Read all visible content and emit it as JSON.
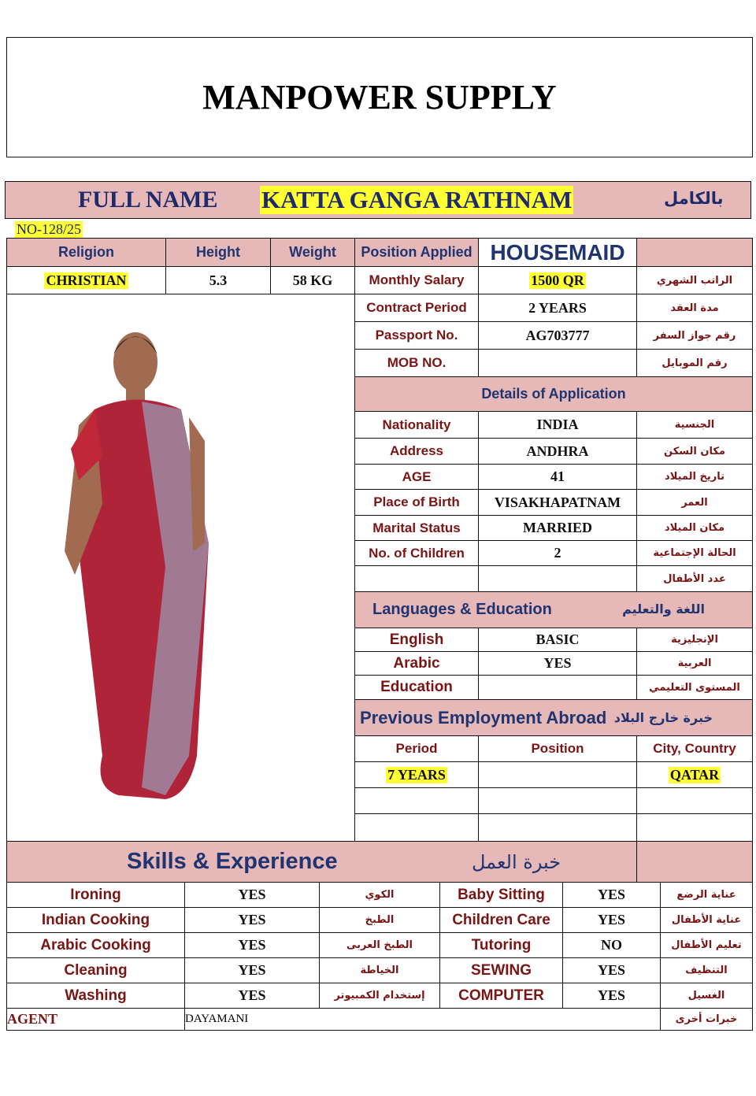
{
  "title": "MANPOWER SUPPLY",
  "name_bar": {
    "label": "FULL NAME",
    "name": "KATTA GANGA RATHNAM",
    "arabic": "بالكامل"
  },
  "ref_no": "NO-128/25",
  "personal": {
    "religion_label": "Religion",
    "religion": "CHRISTIAN",
    "height_label": "Height",
    "height": "5.3",
    "weight_label": "Weight",
    "weight": "58  KG",
    "position_label": "Position Applied",
    "position": "HOUSEMAID",
    "salary_label": "Monthly Salary",
    "salary": "1500 QR",
    "salary_ar": "الراتب  الشهري",
    "contract_label": "Contract Period",
    "contract": "2 YEARS",
    "contract_ar": "مدة العقد",
    "passport_label": "Passport No.",
    "passport": "AG703777",
    "passport_ar": "رقم جواز السفر",
    "mob_label": "MOB NO.",
    "mob": "",
    "mob_ar": "رقم  الموبايل"
  },
  "details": {
    "header": "Details of Application",
    "rows": [
      {
        "label": "Nationality",
        "value": "INDIA",
        "ar": "الجنسية"
      },
      {
        "label": "Address",
        "value": "ANDHRA",
        "ar": "مكان السكن"
      },
      {
        "label": "AGE",
        "value": "41",
        "ar": "تاريخ  الميلاد"
      },
      {
        "label": "Place of Birth",
        "value": "VISAKHAPATNAM",
        "ar": "العمر"
      },
      {
        "label": "Marital Status",
        "value": "MARRIED",
        "ar": "مكان الميلاد"
      },
      {
        "label": "No. of Children",
        "value": "2",
        "ar": "الحالة الإجتماعية"
      },
      {
        "label": "",
        "value": "",
        "ar": "عدد الأطفال"
      }
    ]
  },
  "languages": {
    "header": "Languages & Education",
    "header_ar": "اللغة والتعليم",
    "rows": [
      {
        "label": "English",
        "value": "BASIC",
        "ar": "الإنجليزية"
      },
      {
        "label": "Arabic",
        "value": "YES",
        "ar": "العربية"
      },
      {
        "label": "Education",
        "value": "",
        "ar": "المستوى التعليمي"
      }
    ]
  },
  "employment": {
    "header": "Previous Employment Abroad",
    "header_ar": "خبرة خارج البلاد",
    "columns": [
      "Period",
      "Position",
      "City, Country"
    ],
    "rows": [
      [
        "7 YEARS",
        "",
        "QATAR"
      ],
      [
        "",
        "",
        ""
      ],
      [
        "",
        "",
        ""
      ]
    ]
  },
  "skills": {
    "header": "Skills & Experience",
    "header_ar": "خبرة العمل",
    "rows": [
      {
        "l": "Ironing",
        "lv": "YES",
        "lar": "الكوي",
        "r": "Baby Sitting",
        "rv": "YES",
        "rar": "عناية الرضع"
      },
      {
        "l": "Indian Cooking",
        "lv": "YES",
        "lar": "الطبخ",
        "r": "Children Care",
        "rv": "YES",
        "rar": "عناية  الأطفال"
      },
      {
        "l": "Arabic Cooking",
        "lv": "YES",
        "lar": "الطبخ العربى",
        "r": "Tutoring",
        "rv": "NO",
        "rar": "تعليم  الأطفال"
      },
      {
        "l": "Cleaning",
        "lv": "YES",
        "lar": "الخياطة",
        "r": "SEWING",
        "rv": "YES",
        "rar": "التنظيف"
      },
      {
        "l": "Washing",
        "lv": "YES",
        "lar": "إستخدام الكمبيوتر",
        "r": "COMPUTER",
        "rv": "YES",
        "rar": "الغسيل"
      }
    ],
    "agent_label": "AGENT",
    "agent": "DAYAMANI",
    "other_ar": "خبرات  أخرى"
  },
  "colors": {
    "header_pink": "#e6b8b7",
    "highlight": "#ffff33",
    "navy": "#1f3470",
    "label_red": "#7a1515"
  }
}
